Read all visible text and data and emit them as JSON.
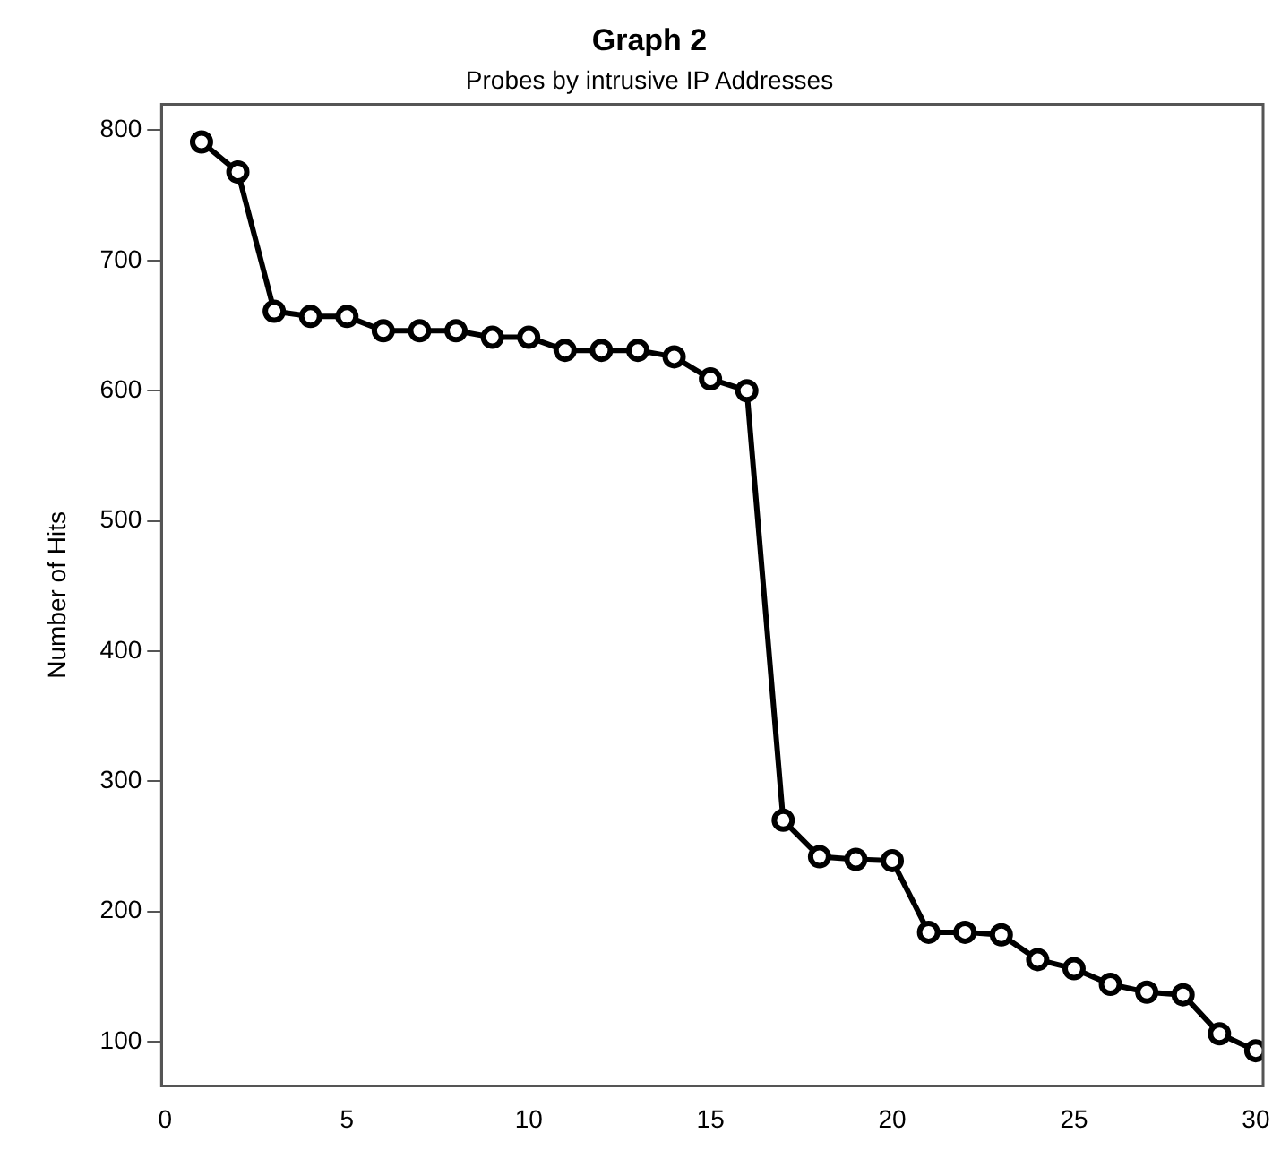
{
  "chart_data": {
    "type": "line",
    "title": "Graph 2",
    "subtitle": "Probes by intrusive IP Addresses",
    "ylabel": "Number of Hits",
    "x": [
      1,
      2,
      3,
      4,
      5,
      6,
      7,
      8,
      9,
      10,
      11,
      12,
      13,
      14,
      15,
      16,
      17,
      18,
      19,
      20,
      21,
      22,
      23,
      24,
      25,
      26,
      27,
      28,
      29,
      30
    ],
    "values": [
      791,
      768,
      661,
      657,
      657,
      646,
      646,
      646,
      641,
      641,
      631,
      631,
      631,
      626,
      609,
      600,
      270,
      242,
      240,
      239,
      184,
      184,
      182,
      163,
      156,
      144,
      138,
      136,
      106,
      93
    ],
    "color": "#000000",
    "marker": "circle",
    "line_style": "solid",
    "xlim": [
      -0.1,
      30.2
    ],
    "xticks": [
      0,
      5,
      10,
      15,
      20,
      25,
      30
    ],
    "ylim": [
      66,
      820
    ],
    "yticks": [
      100,
      200,
      300,
      400,
      500,
      600,
      700,
      800
    ],
    "grid": false,
    "legend": false
  }
}
